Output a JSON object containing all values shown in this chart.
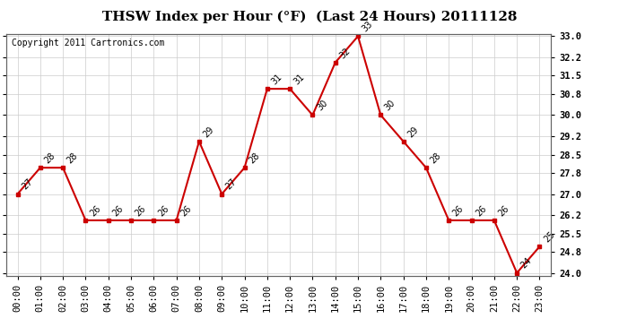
{
  "title": "THSW Index per Hour (°F)  (Last 24 Hours) 20111128",
  "copyright": "Copyright 2011 Cartronics.com",
  "x_labels": [
    "00:00",
    "01:00",
    "02:00",
    "03:00",
    "04:00",
    "05:00",
    "06:00",
    "07:00",
    "08:00",
    "09:00",
    "10:00",
    "11:00",
    "12:00",
    "13:00",
    "14:00",
    "15:00",
    "16:00",
    "17:00",
    "18:00",
    "19:00",
    "20:00",
    "21:00",
    "22:00",
    "23:00"
  ],
  "y_values": [
    27,
    28,
    28,
    26,
    26,
    26,
    26,
    26,
    29,
    27,
    28,
    31,
    31,
    30,
    32,
    33,
    30,
    29,
    28,
    26,
    26,
    26,
    24,
    25
  ],
  "ylim_min": 24.0,
  "ylim_max": 33.0,
  "y_ticks_right": [
    24.0,
    24.8,
    25.5,
    26.2,
    27.0,
    27.8,
    28.5,
    29.2,
    30.0,
    30.8,
    31.5,
    32.2,
    33.0
  ],
  "line_color": "#cc0000",
  "marker_color": "#cc0000",
  "bg_color": "#ffffff",
  "grid_color": "#cccccc",
  "title_fontsize": 11,
  "copyright_fontsize": 7,
  "label_fontsize": 7,
  "tick_fontsize": 7.5,
  "annot_fontsize": 7
}
